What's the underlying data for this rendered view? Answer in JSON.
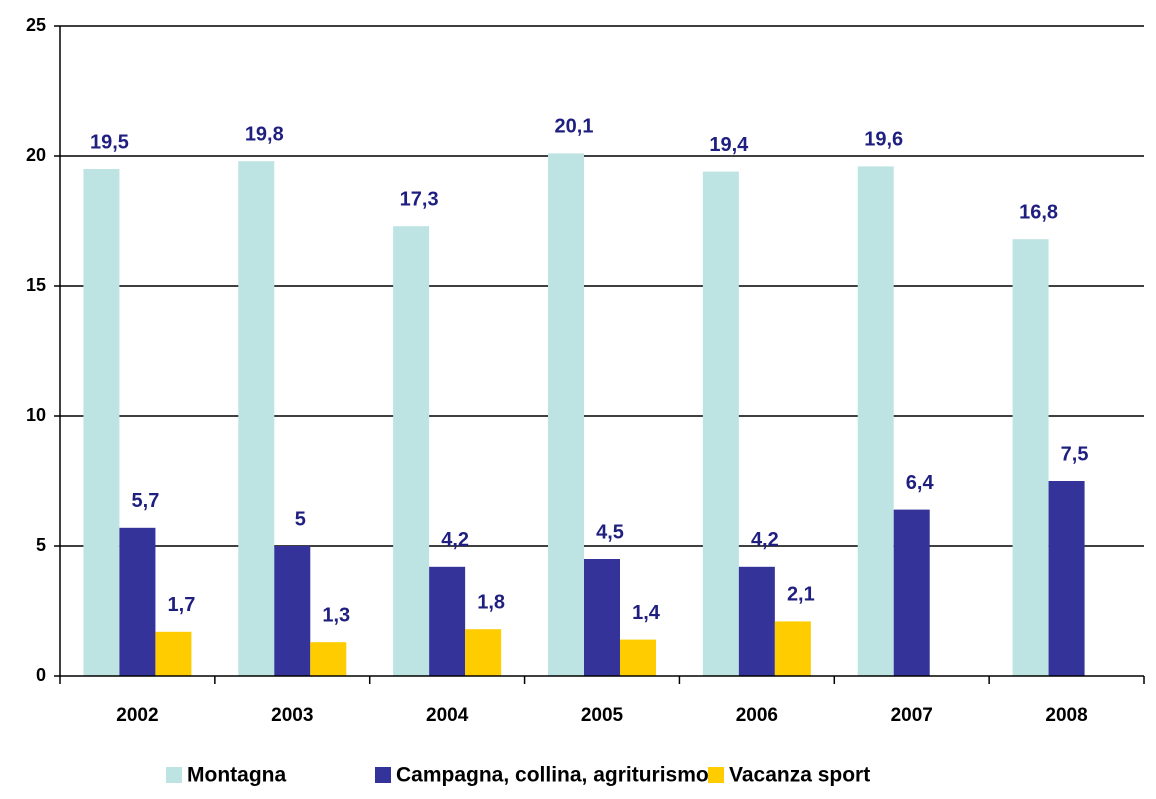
{
  "chart_data": {
    "type": "bar",
    "categories": [
      "2002",
      "2003",
      "2004",
      "2005",
      "2006",
      "2007",
      "2008"
    ],
    "series": [
      {
        "name": "Montagna",
        "color": "#bde3e3",
        "values": [
          19.5,
          19.8,
          17.3,
          20.1,
          19.4,
          19.6,
          16.8
        ],
        "value_labels": [
          "19,5",
          "19,8",
          "17,3",
          "20,1",
          "19,4",
          "19,6",
          "16,8"
        ]
      },
      {
        "name": "Campagna, collina, agriturismo",
        "color": "#333399",
        "values": [
          5.7,
          5,
          4.2,
          4.5,
          4.2,
          6.4,
          7.5
        ],
        "value_labels": [
          "5,7",
          "5",
          "4,2",
          "4,5",
          "4,2",
          "6,4",
          "7,5"
        ]
      },
      {
        "name": "Vacanza sport",
        "color": "#ffcc00",
        "values": [
          1.7,
          1.3,
          1.8,
          1.4,
          2.1,
          null,
          null
        ],
        "value_labels": [
          "1,7",
          "1,3",
          "1,8",
          "1,4",
          "2,1",
          null,
          null
        ]
      }
    ],
    "ylim": [
      0,
      25
    ],
    "yticks": [
      0,
      5,
      10,
      15,
      20,
      25
    ],
    "grid": true,
    "legend": "bottom"
  }
}
